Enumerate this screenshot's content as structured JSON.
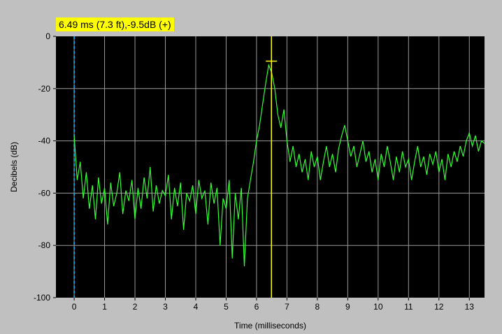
{
  "readout": {
    "text": "6.49 ms (7.3 ft),-9.5dB (+)"
  },
  "chart_data": {
    "type": "line",
    "xlabel": "Time (milliseconds)",
    "ylabel": "Decibels (dB)",
    "xlim": [
      -0.6,
      13.5
    ],
    "ylim": [
      -100,
      0
    ],
    "x_ticks": [
      0,
      1,
      2,
      3,
      4,
      5,
      6,
      7,
      8,
      9,
      10,
      11,
      12,
      13
    ],
    "y_ticks": [
      0,
      -20,
      -40,
      -60,
      -80,
      -100
    ],
    "grid": true,
    "colors": {
      "plot_bg": "#000000",
      "trace": "#33ff33",
      "grid": "#9a9a9a",
      "cursor": "#ffff00",
      "zero_marker": "#00bfff",
      "frame_bg": "#c0c0c0"
    },
    "zero_marker_x": 0,
    "cursor": {
      "x": 6.49,
      "y": -9.5
    },
    "series": [
      {
        "x": [
          0,
          0.1,
          0.2,
          0.3,
          0.4,
          0.5,
          0.6,
          0.7,
          0.8,
          0.9,
          1.0,
          1.1,
          1.2,
          1.3,
          1.4,
          1.5,
          1.6,
          1.7,
          1.8,
          1.9,
          2.0,
          2.1,
          2.2,
          2.3,
          2.4,
          2.5,
          2.6,
          2.7,
          2.8,
          2.9,
          3.0,
          3.1,
          3.2,
          3.3,
          3.4,
          3.5,
          3.6,
          3.7,
          3.8,
          3.9,
          4.0,
          4.1,
          4.2,
          4.3,
          4.4,
          4.5,
          4.6,
          4.7,
          4.8,
          4.9,
          5.0,
          5.1,
          5.2,
          5.3,
          5.4,
          5.5,
          5.6,
          5.7,
          5.8,
          5.9,
          6.0,
          6.1,
          6.2,
          6.3,
          6.4,
          6.5,
          6.6,
          6.7,
          6.8,
          6.9,
          7.0,
          7.1,
          7.2,
          7.3,
          7.4,
          7.5,
          7.6,
          7.7,
          7.8,
          7.9,
          8.0,
          8.1,
          8.2,
          8.3,
          8.4,
          8.5,
          8.6,
          8.7,
          8.8,
          8.9,
          9.0,
          9.1,
          9.2,
          9.3,
          9.4,
          9.5,
          9.6,
          9.7,
          9.8,
          9.9,
          10.0,
          10.1,
          10.2,
          10.3,
          10.4,
          10.5,
          10.6,
          10.7,
          10.8,
          10.9,
          11.0,
          11.1,
          11.2,
          11.3,
          11.4,
          11.5,
          11.6,
          11.7,
          11.8,
          11.9,
          12.0,
          12.1,
          12.2,
          12.3,
          12.4,
          12.5,
          12.6,
          12.7,
          12.8,
          12.9,
          13.0,
          13.1,
          13.2,
          13.3,
          13.4,
          13.5
        ],
        "values": [
          -38,
          -55,
          -48,
          -62,
          -52,
          -66,
          -57,
          -70,
          -54,
          -64,
          -58,
          -72,
          -56,
          -65,
          -60,
          -52,
          -68,
          -59,
          -63,
          -55,
          -70,
          -58,
          -66,
          -54,
          -62,
          -50,
          -67,
          -57,
          -64,
          -59,
          -61,
          -53,
          -70,
          -58,
          -65,
          -56,
          -74,
          -60,
          -63,
          -57,
          -68,
          -55,
          -62,
          -59,
          -72,
          -56,
          -64,
          -58,
          -80,
          -62,
          -66,
          -55,
          -85,
          -60,
          -70,
          -58,
          -88,
          -62,
          -55,
          -48,
          -40,
          -34,
          -26,
          -18,
          -11,
          -14,
          -20,
          -30,
          -35,
          -28,
          -40,
          -48,
          -42,
          -50,
          -45,
          -52,
          -47,
          -55,
          -44,
          -50,
          -46,
          -55,
          -48,
          -42,
          -50,
          -45,
          -52,
          -43,
          -38,
          -34,
          -40,
          -46,
          -42,
          -50,
          -45,
          -40,
          -48,
          -44,
          -52,
          -47,
          -55,
          -45,
          -50,
          -42,
          -48,
          -55,
          -46,
          -52,
          -44,
          -50,
          -47,
          -55,
          -48,
          -42,
          -50,
          -46,
          -53,
          -45,
          -49,
          -44,
          -52,
          -47,
          -55,
          -45,
          -50,
          -44,
          -48,
          -42,
          -46,
          -40,
          -37,
          -42,
          -38,
          -44,
          -40,
          -41
        ]
      }
    ]
  }
}
